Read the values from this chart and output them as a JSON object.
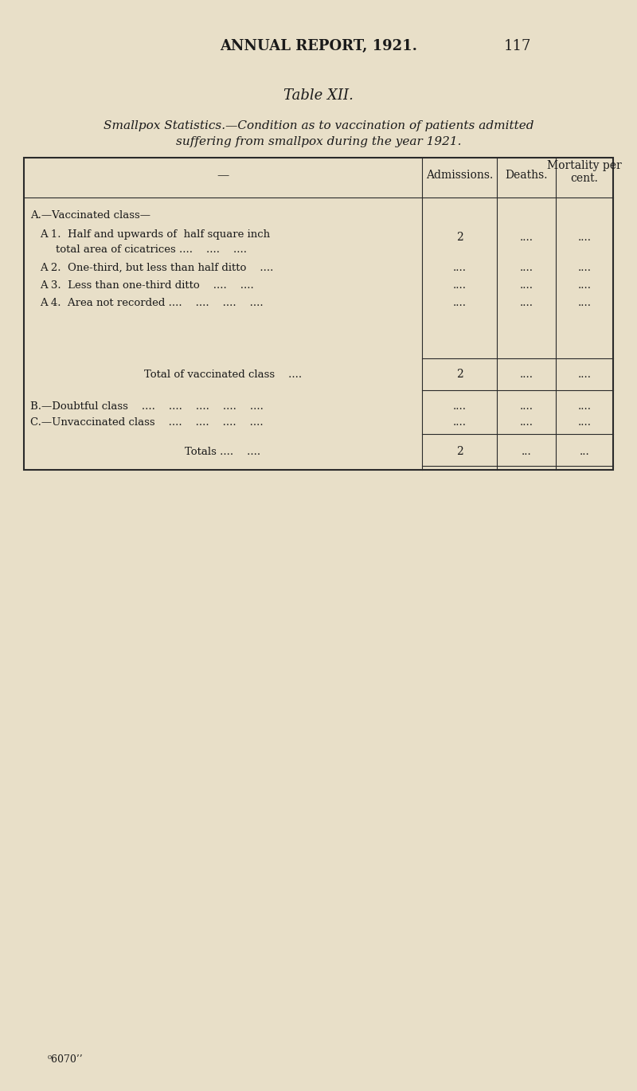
{
  "bg_color": "#e8dfc8",
  "header_title": "ANNUAL REPORT, 1921.",
  "page_number": "117",
  "table_title": "Table XII.",
  "subtitle_line1": "Smallpox Statistics.—Condition as to vaccination of patients admitted",
  "subtitle_line2": "suffering from smallpox during the year 1921.",
  "col_headers": [
    "Admissions.",
    "Deaths.",
    "Mortality per\ncent."
  ],
  "row_dash": "—",
  "rows": [
    {
      "label": "A.—Vaccinated class—\n    A 1.  Half and upwards of  half square inch\n            total area of cicatrices ....    ....    ....",
      "admissions": "2",
      "deaths": "....",
      "mortality": "...."
    },
    {
      "label": "    A 2.  One-third, but less than half ditto    ....",
      "admissions": "....",
      "deaths": "....",
      "mortality": "...."
    },
    {
      "label": "    A 3.  Less than one-third ditto    ....    ....",
      "admissions": "....",
      "deaths": "....",
      "mortality": "...."
    },
    {
      "label": "    A 4.  Area not recorded ....    ....    ....    ....",
      "admissions": "....",
      "deaths": "....",
      "mortality": "...."
    }
  ],
  "total_vaccinated_label": "Total of vaccinated class    ....",
  "total_vaccinated_admissions": "2",
  "total_vaccinated_deaths": "....",
  "total_vaccinated_mortality": "....",
  "B_label": "B.—Doubtful class    ....    ....    ....    ....    ....",
  "B_admissions": "....",
  "B_deaths": "....",
  "B_mortality": "....",
  "C_label": "C.—Unvaccinated class    ....    ....    ....    ....",
  "C_admissions": "....",
  "C_deaths": "....",
  "C_mortality": "....",
  "totals_label": "Totals ....    ....",
  "totals_admissions": "2",
  "totals_deaths": "...",
  "totals_mortality": "...",
  "footer_text": "⁰6070’’"
}
